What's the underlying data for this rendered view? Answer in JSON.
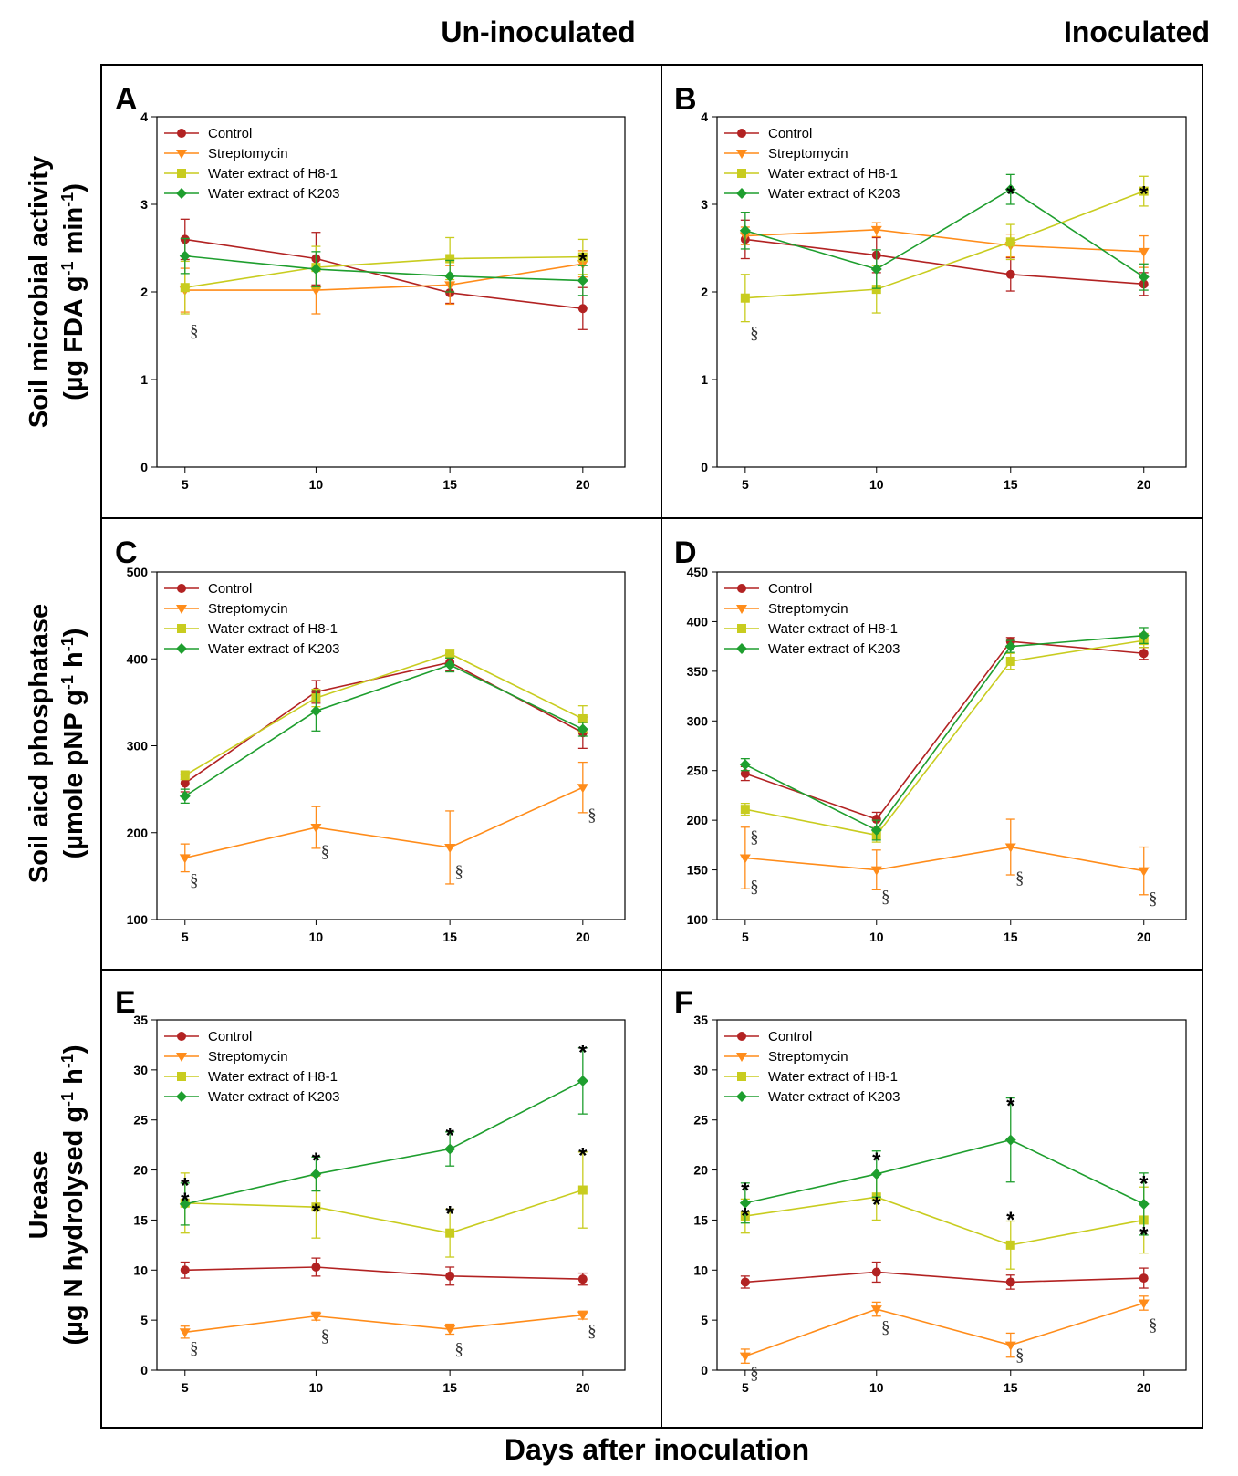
{
  "figure": {
    "col_titles": [
      "Un-inoculated",
      "Inoculated"
    ],
    "x_label": "Days after inoculation",
    "row_labels": [
      {
        "line1": "Soil microbial activity",
        "line2_pre": "(µg FDA g",
        "sup1": "-1",
        "mid": " min",
        "sup2": "-1",
        "post": ")"
      },
      {
        "line1": "Soil aicd phosphatase",
        "line2_pre": "(µmole pNP g",
        "sup1": "-1",
        "mid": " h",
        "sup2": "-1",
        "post": ")"
      },
      {
        "line1": "Urease",
        "line2_pre": "(µg N hydrolysed g",
        "sup1": "-1",
        "mid": " h",
        "sup2": "-1",
        "post": ")"
      }
    ]
  },
  "colors": {
    "control": "#b22222",
    "streptomycin": "#ff8c1a",
    "h81": "#c8cc1f",
    "k203": "#1e9e2e"
  },
  "chart_data": [
    {
      "panel": "A",
      "type": "line",
      "x": [
        5,
        10,
        15,
        20
      ],
      "ylim": [
        0,
        4
      ],
      "yticks": [
        0,
        1,
        2,
        3,
        4
      ],
      "legend": [
        "Control",
        "Streptomycin",
        "Water extract of H8-1",
        "Water extract of K203"
      ],
      "series": [
        {
          "key": "control",
          "name": "Control",
          "marker": "circle",
          "values": [
            2.6,
            2.38,
            1.99,
            1.81
          ],
          "errors": [
            0.23,
            0.3,
            0.12,
            0.24
          ]
        },
        {
          "key": "streptomycin",
          "name": "Streptomycin",
          "marker": "triangle-down",
          "values": [
            2.02,
            2.02,
            2.08,
            2.32
          ],
          "errors": [
            0.25,
            0.27,
            0.22,
            0.15
          ]
        },
        {
          "key": "h81",
          "name": "Water extract of H8-1",
          "marker": "square",
          "values": [
            2.05,
            2.28,
            2.38,
            2.4
          ],
          "errors": [
            0.3,
            0.24,
            0.24,
            0.2
          ]
        },
        {
          "key": "k203",
          "name": "Water extract of K203",
          "marker": "diamond",
          "values": [
            2.41,
            2.26,
            2.18,
            2.13
          ],
          "errors": [
            0.2,
            0.2,
            0.18,
            0.17
          ]
        }
      ],
      "annotations": [
        {
          "text": "§",
          "x": 5,
          "y": 1.55
        },
        {
          "text": "*",
          "x": 20,
          "y": 2.42
        }
      ]
    },
    {
      "panel": "B",
      "type": "line",
      "x": [
        5,
        10,
        15,
        20
      ],
      "ylim": [
        0,
        4
      ],
      "yticks": [
        0,
        1,
        2,
        3,
        4
      ],
      "legend": [
        "Control",
        "Streptomycin",
        "Water extract of H8-1",
        "Water extract of K203"
      ],
      "series": [
        {
          "key": "control",
          "name": "Control",
          "marker": "circle",
          "values": [
            2.6,
            2.42,
            2.2,
            2.09
          ],
          "errors": [
            0.22,
            0.2,
            0.19,
            0.13
          ]
        },
        {
          "key": "streptomycin",
          "name": "Streptomycin",
          "marker": "triangle-down",
          "values": [
            2.64,
            2.71,
            2.53,
            2.46
          ],
          "errors": [
            0.1,
            0.08,
            0.13,
            0.18
          ]
        },
        {
          "key": "h81",
          "name": "Water extract of H8-1",
          "marker": "square",
          "values": [
            1.93,
            2.03,
            2.57,
            3.15
          ],
          "errors": [
            0.27,
            0.27,
            0.2,
            0.17
          ]
        },
        {
          "key": "k203",
          "name": "Water extract of K203",
          "marker": "diamond",
          "values": [
            2.7,
            2.26,
            3.17,
            2.17
          ],
          "errors": [
            0.21,
            0.22,
            0.17,
            0.15
          ]
        }
      ],
      "annotations": [
        {
          "text": "§",
          "x": 5,
          "y": 1.53
        },
        {
          "text": "*",
          "x": 15,
          "y": 3.18
        },
        {
          "text": "*",
          "x": 20,
          "y": 3.18
        }
      ]
    },
    {
      "panel": "C",
      "type": "line",
      "x": [
        5,
        10,
        15,
        20
      ],
      "ylim": [
        100,
        500
      ],
      "yticks": [
        100,
        200,
        300,
        400,
        500
      ],
      "legend": [
        "Control",
        "Streptomycin",
        "Water extract of H8-1",
        "Water extract of K203"
      ],
      "series": [
        {
          "key": "control",
          "name": "Control",
          "marker": "circle",
          "values": [
            257,
            362,
            396,
            315
          ],
          "errors": [
            10,
            13,
            10,
            18
          ]
        },
        {
          "key": "streptomycin",
          "name": "Streptomycin",
          "marker": "triangle-down",
          "values": [
            171,
            206,
            183,
            252
          ],
          "errors": [
            16,
            24,
            42,
            29
          ]
        },
        {
          "key": "h81",
          "name": "Water extract of H8-1",
          "marker": "square",
          "values": [
            266,
            355,
            406,
            331
          ],
          "errors": [
            5,
            10,
            5,
            15
          ]
        },
        {
          "key": "k203",
          "name": "Water extract of K203",
          "marker": "diamond",
          "values": [
            242,
            340,
            393,
            319
          ],
          "errors": [
            8,
            23,
            8,
            8
          ]
        }
      ],
      "annotations": [
        {
          "text": "§",
          "x": 5,
          "y": 145
        },
        {
          "text": "§",
          "x": 10,
          "y": 178
        },
        {
          "text": "§",
          "x": 15,
          "y": 155
        },
        {
          "text": "§",
          "x": 20,
          "y": 220
        }
      ]
    },
    {
      "panel": "D",
      "type": "line",
      "x": [
        5,
        10,
        15,
        20
      ],
      "ylim": [
        100,
        450
      ],
      "yticks": [
        100,
        150,
        200,
        250,
        300,
        350,
        400,
        450
      ],
      "legend": [
        "Control",
        "Streptomycin",
        "Water extract of H8-1",
        "Water extract of K203"
      ],
      "series": [
        {
          "key": "control",
          "name": "Control",
          "marker": "circle",
          "values": [
            247,
            201,
            380,
            368
          ],
          "errors": [
            7,
            7,
            4,
            6
          ]
        },
        {
          "key": "streptomycin",
          "name": "Streptomycin",
          "marker": "triangle-down",
          "values": [
            162,
            150,
            173,
            149
          ],
          "errors": [
            31,
            20,
            28,
            24
          ]
        },
        {
          "key": "h81",
          "name": "Water extract of H8-1",
          "marker": "square",
          "values": [
            211,
            185,
            360,
            381
          ],
          "errors": [
            6,
            7,
            8,
            7
          ]
        },
        {
          "key": "k203",
          "name": "Water extract of K203",
          "marker": "diamond",
          "values": [
            256,
            190,
            375,
            386
          ],
          "errors": [
            6,
            10,
            6,
            8
          ]
        }
      ],
      "annotations": [
        {
          "text": "§",
          "x": 5,
          "y": 183
        },
        {
          "text": "§",
          "x": 5,
          "y": 133
        },
        {
          "text": "§",
          "x": 10,
          "y": 123
        },
        {
          "text": "§",
          "x": 15,
          "y": 142
        },
        {
          "text": "§",
          "x": 20,
          "y": 121
        }
      ]
    },
    {
      "panel": "E",
      "type": "line",
      "x": [
        5,
        10,
        15,
        20
      ],
      "ylim": [
        0,
        35
      ],
      "yticks": [
        0,
        5,
        10,
        15,
        20,
        25,
        30,
        35
      ],
      "legend": [
        "Control",
        "Streptomycin",
        "Water extract of H8-1",
        "Water extract of K203"
      ],
      "series": [
        {
          "key": "control",
          "name": "Control",
          "marker": "circle",
          "values": [
            10,
            10.3,
            9.4,
            9.1
          ],
          "errors": [
            0.8,
            0.9,
            0.9,
            0.6
          ]
        },
        {
          "key": "streptomycin",
          "name": "Streptomycin",
          "marker": "triangle-down",
          "values": [
            3.8,
            5.4,
            4.1,
            5.5
          ],
          "errors": [
            0.6,
            0.4,
            0.5,
            0.4
          ]
        },
        {
          "key": "h81",
          "name": "Water extract of H8-1",
          "marker": "square",
          "values": [
            16.7,
            16.3,
            13.7,
            18
          ],
          "errors": [
            3,
            3.1,
            2.4,
            3.8
          ]
        },
        {
          "key": "k203",
          "name": "Water extract of K203",
          "marker": "diamond",
          "values": [
            16.6,
            19.6,
            22.1,
            28.9
          ],
          "errors": [
            2.1,
            1.7,
            1.7,
            3.3
          ]
        }
      ],
      "annotations": [
        {
          "text": "*",
          "x": 5,
          "y": 19
        },
        {
          "text": "*",
          "x": 5,
          "y": 17.5
        },
        {
          "text": "*",
          "x": 10,
          "y": 21.5
        },
        {
          "text": "*",
          "x": 10,
          "y": 16.4
        },
        {
          "text": "*",
          "x": 15,
          "y": 24
        },
        {
          "text": "*",
          "x": 15,
          "y": 16.2
        },
        {
          "text": "*",
          "x": 20,
          "y": 32.3
        },
        {
          "text": "*",
          "x": 20,
          "y": 22
        },
        {
          "text": "§",
          "x": 5,
          "y": 2.2
        },
        {
          "text": "§",
          "x": 10,
          "y": 3.4
        },
        {
          "text": "§",
          "x": 15,
          "y": 2.1
        },
        {
          "text": "§",
          "x": 20,
          "y": 3.9
        }
      ]
    },
    {
      "panel": "F",
      "type": "line",
      "x": [
        5,
        10,
        15,
        20
      ],
      "ylim": [
        0,
        35
      ],
      "yticks": [
        0,
        5,
        10,
        15,
        20,
        25,
        30,
        35
      ],
      "legend": [
        "Control",
        "Streptomycin",
        "Water extract of H8-1",
        "Water extract of K203"
      ],
      "series": [
        {
          "key": "control",
          "name": "Control",
          "marker": "circle",
          "values": [
            8.8,
            9.8,
            8.8,
            9.2
          ],
          "errors": [
            0.6,
            1,
            0.7,
            1
          ]
        },
        {
          "key": "streptomycin",
          "name": "Streptomycin",
          "marker": "triangle-down",
          "values": [
            1.4,
            6.1,
            2.5,
            6.7
          ],
          "errors": [
            0.7,
            0.7,
            1.2,
            0.7
          ]
        },
        {
          "key": "h81",
          "name": "Water extract of H8-1",
          "marker": "square",
          "values": [
            15.4,
            17.3,
            12.5,
            15
          ],
          "errors": [
            1.7,
            2.3,
            2.4,
            3.3
          ]
        },
        {
          "key": "k203",
          "name": "Water extract of K203",
          "marker": "diamond",
          "values": [
            16.7,
            19.6,
            23,
            16.6
          ],
          "errors": [
            2,
            2.3,
            4.2,
            3.1
          ]
        }
      ],
      "annotations": [
        {
          "text": "*",
          "x": 5,
          "y": 18.5
        },
        {
          "text": "*",
          "x": 5,
          "y": 16
        },
        {
          "text": "*",
          "x": 10,
          "y": 21.5
        },
        {
          "text": "*",
          "x": 10,
          "y": 17.1
        },
        {
          "text": "*",
          "x": 15,
          "y": 27
        },
        {
          "text": "*",
          "x": 15,
          "y": 15.6
        },
        {
          "text": "*",
          "x": 20,
          "y": 19.2
        },
        {
          "text": "*",
          "x": 20,
          "y": 14.1
        },
        {
          "text": "§",
          "x": 5,
          "y": -0.3
        },
        {
          "text": "§",
          "x": 10,
          "y": 4.3
        },
        {
          "text": "§",
          "x": 15,
          "y": 1.5
        },
        {
          "text": "§",
          "x": 20,
          "y": 4.5
        }
      ]
    }
  ]
}
